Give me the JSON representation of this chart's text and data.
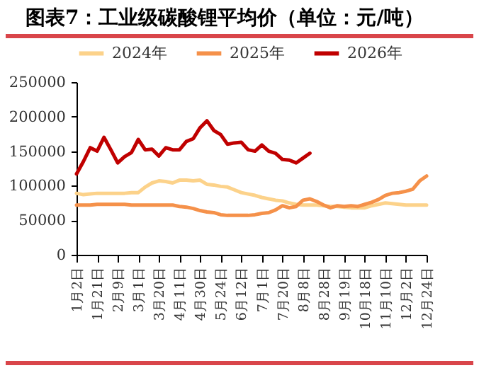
{
  "chart_data": {
    "type": "line",
    "title": "图表7：工业级碳酸锂平均价（单位：元/吨）",
    "categories": [
      "1月2日",
      null,
      null,
      "1月21日",
      null,
      null,
      "2月9日",
      null,
      null,
      "3月1日",
      null,
      null,
      "3月20日",
      null,
      null,
      "4月11日",
      null,
      null,
      "4月30日",
      null,
      null,
      "5月24日",
      null,
      null,
      "6月12日",
      null,
      null,
      "7月1日",
      null,
      null,
      "7月20日",
      null,
      null,
      "8月8日",
      null,
      null,
      "8月28日",
      null,
      null,
      "9月19日",
      null,
      null,
      "10月18日",
      null,
      null,
      "11月10日",
      null,
      null,
      "12月2日",
      null,
      null,
      "12月24日"
    ],
    "series": [
      {
        "name": "2024年",
        "color": "#fcd28a",
        "values": [
          89000,
          87000,
          88000,
          89000,
          89000,
          89000,
          89000,
          89000,
          90000,
          90000,
          98000,
          104000,
          107000,
          106000,
          104000,
          108000,
          108000,
          107000,
          108000,
          102000,
          101000,
          99000,
          98000,
          94000,
          90000,
          88000,
          86000,
          83000,
          81000,
          79000,
          78000,
          75000,
          73000,
          72000,
          72000,
          72000,
          71000,
          70000,
          70000,
          69000,
          68000,
          68000,
          68000,
          71000,
          73000,
          75000,
          74000,
          73000,
          72000,
          72000,
          72000,
          72000
        ]
      },
      {
        "name": "2025年",
        "color": "#f5914a",
        "values": [
          72000,
          72000,
          72000,
          73000,
          73000,
          73000,
          73000,
          73000,
          72000,
          72000,
          72000,
          72000,
          72000,
          72000,
          72000,
          70000,
          69000,
          67000,
          64000,
          62000,
          61000,
          58000,
          57000,
          57000,
          57000,
          57000,
          58000,
          60000,
          61000,
          65000,
          71000,
          68000,
          70000,
          79000,
          81000,
          77000,
          72000,
          68000,
          71000,
          70000,
          71000,
          70000,
          73000,
          76000,
          80000,
          86000,
          89000,
          90000,
          92000,
          95000,
          107000,
          114000
        ]
      },
      {
        "name": "2026年",
        "color": "#c00000",
        "values": [
          117000,
          135000,
          155000,
          150000,
          170000,
          152000,
          133000,
          142000,
          148000,
          167000,
          152000,
          153000,
          143000,
          155000,
          152000,
          152000,
          164000,
          168000,
          184000,
          194000,
          180000,
          174000,
          160000,
          162000,
          163000,
          152000,
          150000,
          159000,
          150000,
          147000,
          138000,
          137000,
          133000,
          140000,
          147000,
          null,
          null,
          null,
          null,
          null,
          null,
          null,
          null,
          null,
          null,
          null,
          null,
          null,
          null,
          null,
          null,
          null
        ]
      }
    ],
    "ylim": [
      0,
      250000
    ],
    "yticks": [
      0,
      50000,
      100000,
      150000,
      200000,
      250000
    ],
    "legend": "top"
  }
}
